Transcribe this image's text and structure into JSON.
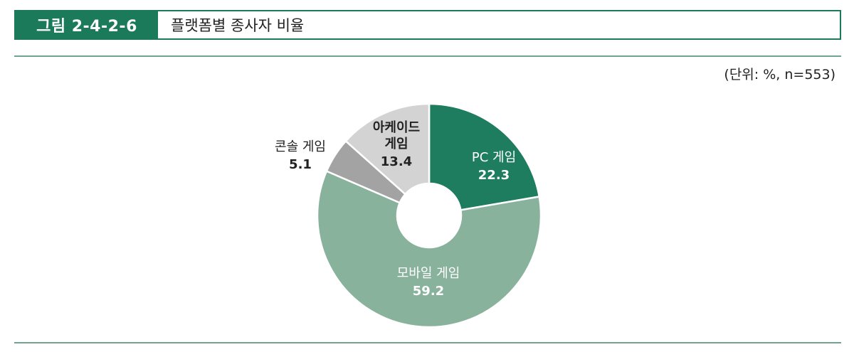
{
  "figure": {
    "label": "그림 2-4-2-6",
    "title": "플랫폼별 종사자 비율",
    "unit": "(단위: %, n=553)"
  },
  "colors": {
    "accent": "#1a7a5a",
    "rule": "#6fa58e"
  },
  "chart_data": {
    "type": "pie",
    "donut": true,
    "title": "",
    "categories": [
      "PC 게임",
      "모바일 게임",
      "콘솔 게임",
      "아케이드 게임"
    ],
    "values": [
      22.3,
      59.2,
      5.1,
      13.4
    ],
    "slices": [
      {
        "label": "PC 게임",
        "value": 22.3,
        "display": "22.3",
        "color": "#1e7d5e",
        "text_color": "#ffffff"
      },
      {
        "label": "모바일 게임",
        "value": 59.2,
        "display": "59.2",
        "color": "#88b29c",
        "text_color": "#ffffff"
      },
      {
        "label": "콘솔 게임",
        "value": 5.1,
        "display": "5.1",
        "color": "#a3a3a3",
        "text_color": "#222222"
      },
      {
        "label": "아케이드 게임",
        "value": 13.4,
        "display": "13.4",
        "color": "#d3d3d3",
        "text_color": "#222222"
      }
    ]
  }
}
